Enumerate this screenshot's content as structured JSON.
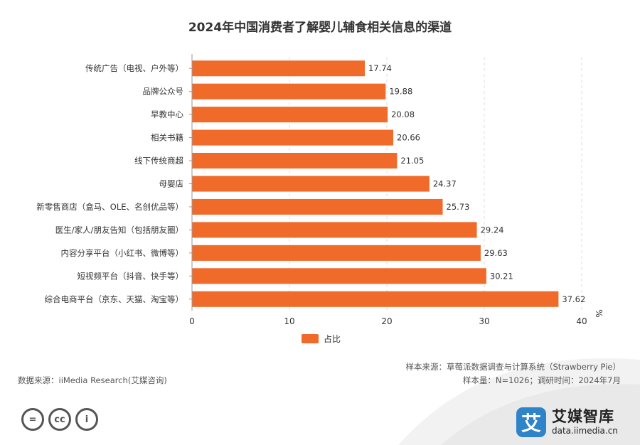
{
  "colors": {
    "bar": "#f06a2a",
    "grid": "#dddddd",
    "axis": "#999999"
  },
  "chart_data": {
    "type": "bar",
    "orientation": "horizontal",
    "title": "2024年中国消费者了解婴儿辅食相关信息的渠道",
    "categories": [
      "传统广告（电视、户外等）",
      "品牌公众号",
      "早教中心",
      "相关书籍",
      "线下传统商超",
      "母婴店",
      "新零售商店（盒马、OLE、名创优品等）",
      "医生/家人/朋友告知（包括朋友圈）",
      "内容分享平台（小红书、微博等）",
      "短视频平台（抖音、快手等）",
      "综合电商平台（京东、天猫、淘宝等）"
    ],
    "series": [
      {
        "name": "占比",
        "values": [
          17.74,
          19.88,
          20.08,
          20.66,
          21.05,
          24.37,
          25.73,
          29.24,
          29.63,
          30.21,
          37.62
        ]
      }
    ],
    "value_labels": [
      "17.74",
      "19.88",
      "20.08",
      "20.66",
      "21.05",
      "24.37",
      "25.73",
      "29.24",
      "29.63",
      "30.21",
      "37.62"
    ],
    "xlim": [
      0,
      40
    ],
    "xticks": [
      0,
      10,
      20,
      30,
      40
    ],
    "xtick_labels": [
      "0",
      "10",
      "20",
      "30",
      "40"
    ],
    "unit": "%",
    "legend": {
      "position": "bottom",
      "entries": [
        "占比"
      ]
    },
    "grid": "vertical dashed"
  },
  "footer": {
    "sample_source": "样本来源：草莓派数据调查与计算系统（Strawberry Pie）",
    "sample_info": "样本量：N=1026；调研时间：2024年7月",
    "data_source": "数据来源：iiMedia Research(艾媒咨询)"
  },
  "brand": {
    "logo_char": "艾",
    "name": "艾媒智库",
    "url": "data.iimedia.cn"
  },
  "license_icons": [
    "=",
    "cc",
    "i"
  ]
}
